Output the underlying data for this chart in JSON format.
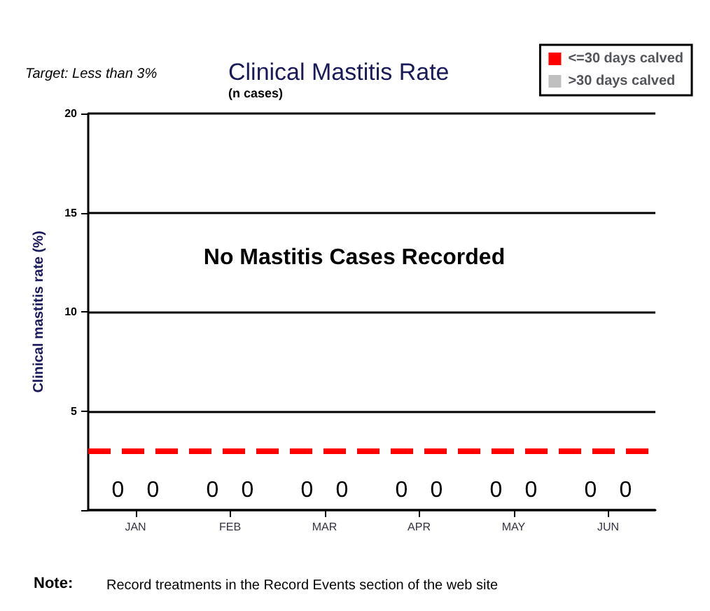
{
  "chart_data": {
    "type": "bar",
    "title": "Clinical Mastitis Rate",
    "subtitle": "(n cases)",
    "ylabel": "Clinical mastitis rate (%)",
    "categories": [
      "JAN",
      "FEB",
      "MAR",
      "APR",
      "MAY",
      "JUN"
    ],
    "series": [
      {
        "name": "<=30 days calved",
        "color": "#ff0000",
        "values": [
          0,
          0,
          0,
          0,
          0,
          0
        ]
      },
      {
        "name": ">30 days calved",
        "color": "#c0c0c0",
        "values": [
          0,
          0,
          0,
          0,
          0,
          0
        ]
      }
    ],
    "data_labels": true,
    "ylim": [
      0,
      20
    ],
    "yticks": [
      {
        "value": 0,
        "label": null
      },
      5,
      10,
      15,
      20
    ],
    "grid": "y",
    "legend": "top right",
    "ref_lines": [
      {
        "axis": "y",
        "value": 3,
        "color": "#ff0000",
        "line_style": "dashed"
      }
    ],
    "annotations": [
      "Target: Less than 3%",
      "No Mastitis Cases Recorded",
      "Note:",
      "Record treatments in the Record Events section of the web site"
    ]
  }
}
